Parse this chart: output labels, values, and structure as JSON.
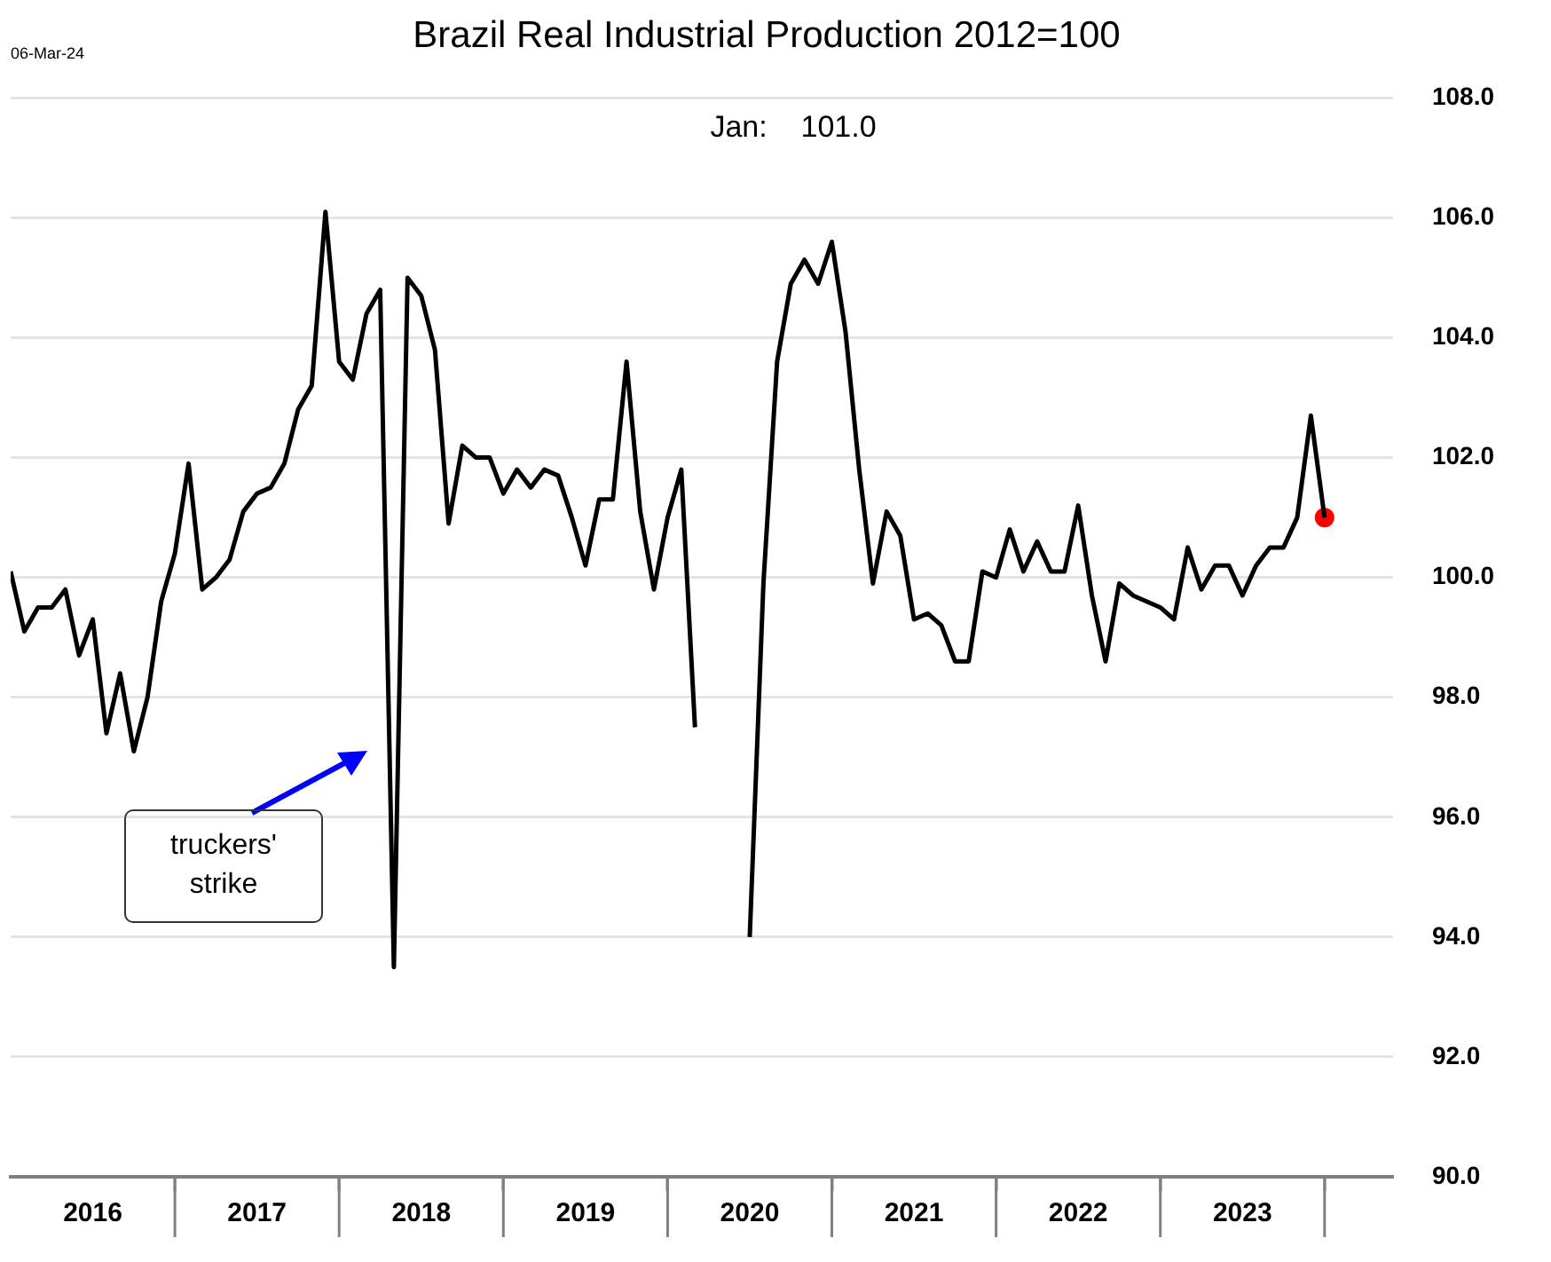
{
  "chart_data": {
    "type": "line",
    "title": "Brazil Real Industrial Production 2012=100",
    "annotations": [
      "06-Mar-24",
      "Jan:    101.0",
      "truckers' strike"
    ],
    "x": [
      "2016-01",
      "2016-02",
      "2016-03",
      "2016-04",
      "2016-05",
      "2016-06",
      "2016-07",
      "2016-08",
      "2016-09",
      "2016-10",
      "2016-11",
      "2016-12",
      "2017-01",
      "2017-02",
      "2017-03",
      "2017-04",
      "2017-05",
      "2017-06",
      "2017-07",
      "2017-08",
      "2017-09",
      "2017-10",
      "2017-11",
      "2017-12",
      "2018-01",
      "2018-02",
      "2018-03",
      "2018-04",
      "2018-05",
      "2018-06",
      "2018-07",
      "2018-08",
      "2018-09",
      "2018-10",
      "2018-11",
      "2018-12",
      "2019-01",
      "2019-02",
      "2019-03",
      "2019-04",
      "2019-05",
      "2019-06",
      "2019-07",
      "2019-08",
      "2019-09",
      "2019-10",
      "2019-11",
      "2019-12",
      "2020-01",
      "2020-02",
      "2020-03",
      "2020-04",
      "2020-05",
      "2020-06",
      "2020-07",
      "2020-08",
      "2020-09",
      "2020-10",
      "2020-11",
      "2020-12",
      "2021-01",
      "2021-02",
      "2021-03",
      "2021-04",
      "2021-05",
      "2021-06",
      "2021-07",
      "2021-08",
      "2021-09",
      "2021-10",
      "2021-11",
      "2021-12",
      "2022-01",
      "2022-02",
      "2022-03",
      "2022-04",
      "2022-05",
      "2022-06",
      "2022-07",
      "2022-08",
      "2022-09",
      "2022-10",
      "2022-11",
      "2022-12",
      "2023-01",
      "2023-02",
      "2023-03",
      "2023-04",
      "2023-05",
      "2023-06",
      "2023-07",
      "2023-08",
      "2023-09",
      "2023-10",
      "2023-11",
      "2023-12",
      "2024-01"
    ],
    "series": [
      {
        "color": "#000000",
        "values": [
          100.1,
          99.1,
          99.5,
          99.5,
          99.8,
          98.7,
          99.3,
          97.4,
          98.4,
          97.1,
          98.0,
          99.6,
          100.4,
          101.9,
          99.8,
          100.0,
          100.3,
          101.1,
          101.4,
          101.5,
          101.9,
          102.8,
          103.2,
          106.1,
          103.6,
          103.3,
          104.4,
          104.8,
          93.5,
          105.0,
          104.7,
          103.8,
          100.9,
          102.2,
          102.0,
          102.0,
          101.4,
          101.8,
          101.5,
          101.8,
          101.7,
          101.0,
          100.2,
          101.3,
          101.3,
          103.6,
          101.1,
          99.8,
          101.0,
          101.8,
          97.5,
          null,
          null,
          null,
          94.0,
          99.9,
          103.6,
          104.9,
          105.3,
          104.9,
          105.6,
          104.1,
          101.8,
          99.9,
          101.1,
          100.7,
          99.3,
          99.4,
          99.2,
          98.6,
          98.6,
          100.1,
          100.0,
          100.8,
          100.1,
          100.6,
          100.1,
          100.1,
          101.2,
          99.7,
          98.6,
          99.9,
          99.7,
          99.6,
          99.5,
          99.3,
          100.5,
          99.8,
          100.2,
          100.2,
          99.7,
          100.2,
          100.5,
          100.5,
          101.0,
          102.7,
          101.0
        ]
      },
      {
        "type": "scatter",
        "color": "#ff0000",
        "marker": "circle",
        "x": [
          "2024-01"
        ],
        "values": [
          101.0
        ]
      }
    ],
    "xlim": [
      "2016-01",
      "2024-06"
    ],
    "xticks": [
      {
        "value": "2016-07",
        "label": "2016"
      },
      {
        "value": "2017-01",
        "label": null
      },
      {
        "value": "2017-07",
        "label": "2017"
      },
      {
        "value": "2018-01",
        "label": null
      },
      {
        "value": "2018-07",
        "label": "2018"
      },
      {
        "value": "2019-01",
        "label": null
      },
      {
        "value": "2019-07",
        "label": "2019"
      },
      {
        "value": "2020-01",
        "label": null
      },
      {
        "value": "2020-07",
        "label": "2020"
      },
      {
        "value": "2021-01",
        "label": null
      },
      {
        "value": "2021-07",
        "label": "2021"
      },
      {
        "value": "2022-01",
        "label": null
      },
      {
        "value": "2022-07",
        "label": "2022"
      },
      {
        "value": "2023-01",
        "label": null
      },
      {
        "value": "2023-07",
        "label": "2023"
      },
      {
        "value": "2024-01",
        "label": null
      }
    ],
    "ylim": [
      90,
      108
    ],
    "yticks": [
      {
        "value": 90,
        "label": "90.0"
      },
      {
        "value": 92,
        "label": "92.0"
      },
      {
        "value": 94,
        "label": "94.0"
      },
      {
        "value": 96,
        "label": "96.0"
      },
      {
        "value": 98,
        "label": "98.0"
      },
      {
        "value": 100,
        "label": "100.0"
      },
      {
        "value": 102,
        "label": "102.0"
      },
      {
        "value": 104,
        "label": "104.0"
      },
      {
        "value": 106,
        "label": "106.0"
      },
      {
        "value": 108,
        "label": "108.0"
      }
    ],
    "grid": "y",
    "legend": false,
    "marker": "none",
    "line_style": "solid"
  }
}
